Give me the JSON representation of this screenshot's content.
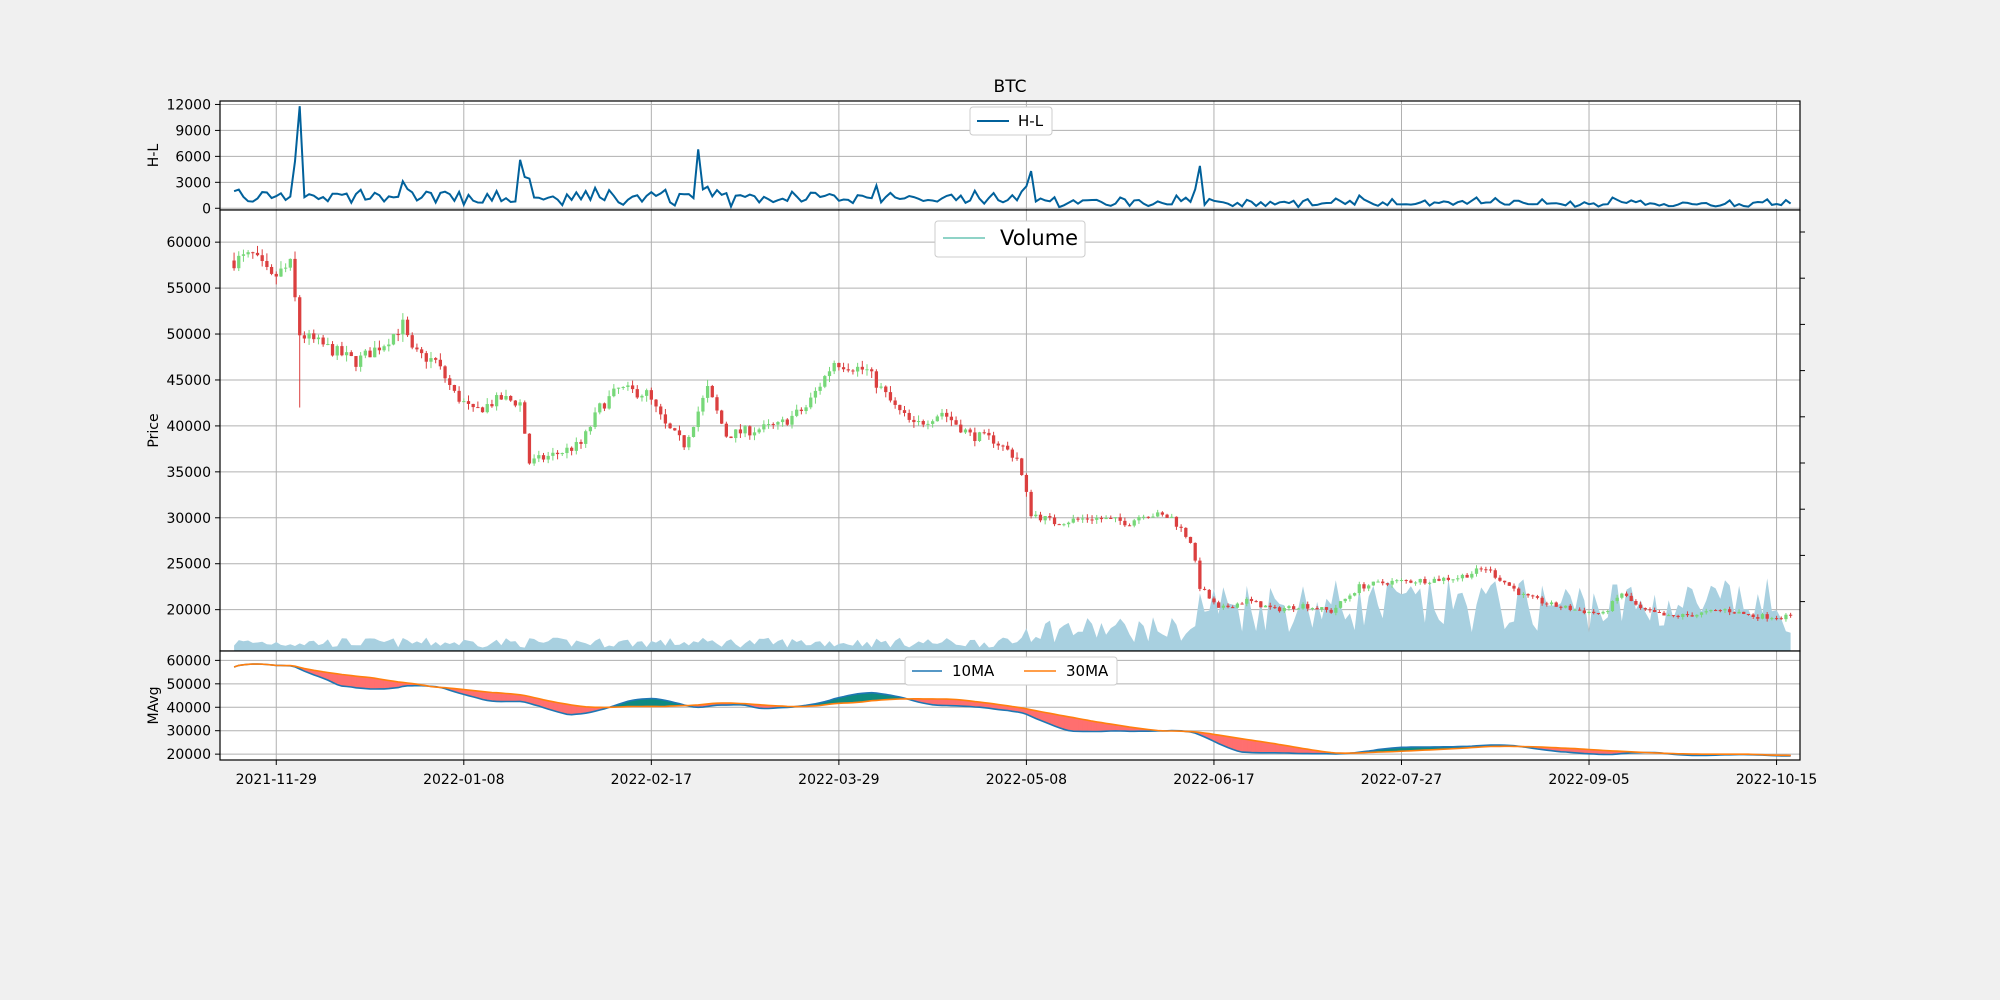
{
  "chart_data": {
    "title": "BTC",
    "x_ticks": [
      "2021-11-29",
      "2022-01-08",
      "2022-02-17",
      "2022-03-29",
      "2022-05-08",
      "2022-06-17",
      "2022-07-27",
      "2022-09-05",
      "2022-10-15"
    ],
    "x_range": [
      "2021-11-17",
      "2022-10-20"
    ],
    "colors": {
      "hl_line": "#01619b",
      "candle_up": "#77d879",
      "candle_down": "#db3f3f",
      "volume_fill": "#a8d0e0",
      "volume_legend": "#8fd3c7",
      "ma10": "#1f77b4",
      "ma30": "#ff7f0e",
      "fill_below": "#ff6f6f",
      "fill_above": "#0e8a80",
      "grid": "#b0b0b0"
    },
    "panels": [
      {
        "id": "hl",
        "type": "line",
        "ylabel": "H-L",
        "yticks": [
          0,
          3000,
          6000,
          9000,
          12000
        ],
        "ylim": [
          -200,
          12400
        ],
        "legend": [
          "H-L"
        ],
        "legend_loc": "upper-center",
        "grid": true
      },
      {
        "id": "price",
        "type": "candlestick",
        "ylabel": "Price",
        "yticks": [
          20000,
          25000,
          30000,
          35000,
          40000,
          45000,
          50000,
          55000,
          60000
        ],
        "ylim": [
          15500,
          63500
        ],
        "legend": [
          "Volume"
        ],
        "legend_loc": "upper-center",
        "grid": true,
        "volume_overlay": true
      },
      {
        "id": "ma",
        "type": "line",
        "ylabel": "MAvg",
        "yticks": [
          20000,
          30000,
          40000,
          50000,
          60000
        ],
        "ylim": [
          17500,
          64000
        ],
        "legend": [
          "10MA",
          "30MA"
        ],
        "legend_loc": "upper-center",
        "grid": true
      }
    ],
    "price_anchors": [
      [
        "2021-11-20",
        58000
      ],
      [
        "2021-11-24",
        58500
      ],
      [
        "2021-11-28",
        56000
      ],
      [
        "2021-12-02",
        57500
      ],
      [
        "2021-12-04",
        50000
      ],
      [
        "2021-12-10",
        48500
      ],
      [
        "2021-12-16",
        47000
      ],
      [
        "2021-12-22",
        49000
      ],
      [
        "2021-12-26",
        51000
      ],
      [
        "2021-12-28",
        48000
      ],
      [
        "2022-01-02",
        47000
      ],
      [
        "2022-01-06",
        43500
      ],
      [
        "2022-01-10",
        41500
      ],
      [
        "2022-01-16",
        43000
      ],
      [
        "2022-01-20",
        42500
      ],
      [
        "2022-01-22",
        36000
      ],
      [
        "2022-01-28",
        37000
      ],
      [
        "2022-02-02",
        38000
      ],
      [
        "2022-02-06",
        42000
      ],
      [
        "2022-02-10",
        44000
      ],
      [
        "2022-02-16",
        43500
      ],
      [
        "2022-02-20",
        40000
      ],
      [
        "2022-02-24",
        38000
      ],
      [
        "2022-03-01",
        44000
      ],
      [
        "2022-03-05",
        39000
      ],
      [
        "2022-03-10",
        39500
      ],
      [
        "2022-03-16",
        40000
      ],
      [
        "2022-03-22",
        42000
      ],
      [
        "2022-03-28",
        47000
      ],
      [
        "2022-04-04",
        46000
      ],
      [
        "2022-04-10",
        42000
      ],
      [
        "2022-04-14",
        40000
      ],
      [
        "2022-04-20",
        41500
      ],
      [
        "2022-04-26",
        39000
      ],
      [
        "2022-05-01",
        38500
      ],
      [
        "2022-05-06",
        36500
      ],
      [
        "2022-05-09",
        30500
      ],
      [
        "2022-05-14",
        29500
      ],
      [
        "2022-05-22",
        30000
      ],
      [
        "2022-05-30",
        29500
      ],
      [
        "2022-06-02",
        30500
      ],
      [
        "2022-06-08",
        30000
      ],
      [
        "2022-06-12",
        27500
      ],
      [
        "2022-06-14",
        22500
      ],
      [
        "2022-06-18",
        20000
      ],
      [
        "2022-06-24",
        21000
      ],
      [
        "2022-06-30",
        20000
      ],
      [
        "2022-07-06",
        20500
      ],
      [
        "2022-07-12",
        19800
      ],
      [
        "2022-07-18",
        22500
      ],
      [
        "2022-07-24",
        23000
      ],
      [
        "2022-08-01",
        23200
      ],
      [
        "2022-08-08",
        23500
      ],
      [
        "2022-08-14",
        24500
      ],
      [
        "2022-08-18",
        23000
      ],
      [
        "2022-08-22",
        21500
      ],
      [
        "2022-08-28",
        20500
      ],
      [
        "2022-09-02",
        20000
      ],
      [
        "2022-09-08",
        19500
      ],
      [
        "2022-09-12",
        21800
      ],
      [
        "2022-09-16",
        20000
      ],
      [
        "2022-09-22",
        19200
      ],
      [
        "2022-09-28",
        19500
      ],
      [
        "2022-10-04",
        20000
      ],
      [
        "2022-10-10",
        19300
      ],
      [
        "2022-10-18",
        19200
      ]
    ],
    "volume_note": "Volume shown as filled area along the bottom of the price panel, rising after 2022-06-13."
  }
}
